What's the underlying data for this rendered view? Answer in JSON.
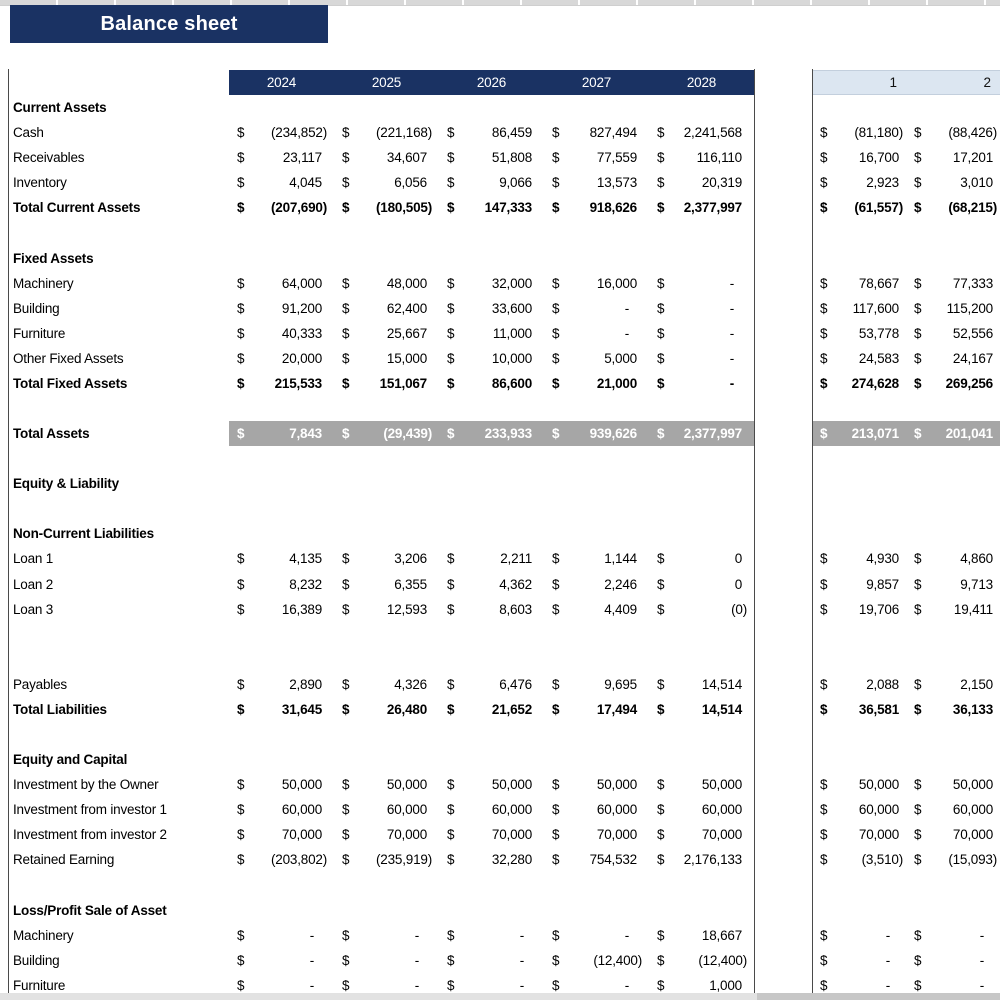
{
  "title": "Balance sheet",
  "table": {
    "currency": "$",
    "years": [
      "2024",
      "2025",
      "2026",
      "2027",
      "2028"
    ],
    "extra_headers": [
      "1",
      "2"
    ],
    "rows": [
      {
        "label": "Current Assets",
        "type": "section"
      },
      {
        "label": "Cash",
        "type": "data",
        "values": [
          "(234,852)",
          "(221,168)",
          "86,459",
          "827,494",
          "2,241,568"
        ],
        "extra": [
          "(81,180)",
          "(88,426)"
        ]
      },
      {
        "label": "Receivables",
        "type": "data",
        "values": [
          "23,117",
          "34,607",
          "51,808",
          "77,559",
          "116,110"
        ],
        "extra": [
          "16,700",
          "17,201"
        ]
      },
      {
        "label": "Inventory",
        "type": "data",
        "values": [
          "4,045",
          "6,056",
          "9,066",
          "13,573",
          "20,319"
        ],
        "extra": [
          "2,923",
          "3,010"
        ]
      },
      {
        "label": "Total Current Assets",
        "type": "total",
        "values": [
          "(207,690)",
          "(180,505)",
          "147,333",
          "918,626",
          "2,377,997"
        ],
        "extra": [
          "(61,557)",
          "(68,215)"
        ]
      },
      {
        "label": "",
        "type": "blank"
      },
      {
        "label": "Fixed Assets",
        "type": "section"
      },
      {
        "label": "Machinery",
        "type": "data",
        "values": [
          "64,000",
          "48,000",
          "32,000",
          "16,000",
          "-"
        ],
        "extra": [
          "78,667",
          "77,333"
        ]
      },
      {
        "label": "Building",
        "type": "data",
        "values": [
          "91,200",
          "62,400",
          "33,600",
          "-",
          "-"
        ],
        "extra": [
          "117,600",
          "115,200"
        ]
      },
      {
        "label": "Furniture",
        "type": "data",
        "values": [
          "40,333",
          "25,667",
          "11,000",
          "-",
          "-"
        ],
        "extra": [
          "53,778",
          "52,556"
        ]
      },
      {
        "label": "Other Fixed Assets",
        "type": "data",
        "values": [
          "20,000",
          "15,000",
          "10,000",
          "5,000",
          "-"
        ],
        "extra": [
          "24,583",
          "24,167"
        ]
      },
      {
        "label": "Total Fixed Assets",
        "type": "total",
        "values": [
          "215,533",
          "151,067",
          "86,600",
          "21,000",
          "-"
        ],
        "extra": [
          "274,628",
          "269,256"
        ]
      },
      {
        "label": "",
        "type": "blank"
      },
      {
        "label": "Total Assets",
        "type": "grand",
        "values": [
          "7,843",
          "(29,439)",
          "233,933",
          "939,626",
          "2,377,997"
        ],
        "extra": [
          "213,071",
          "201,041"
        ]
      },
      {
        "label": "",
        "type": "blank"
      },
      {
        "label": "Equity & Liability",
        "type": "section"
      },
      {
        "label": "",
        "type": "blank"
      },
      {
        "label": "Non-Current Liabilities",
        "type": "section"
      },
      {
        "label": "Loan 1",
        "type": "data",
        "values": [
          "4,135",
          "3,206",
          "2,211",
          "1,144",
          "0"
        ],
        "extra": [
          "4,930",
          "4,860"
        ]
      },
      {
        "label": "Loan 2",
        "type": "data",
        "values": [
          "8,232",
          "6,355",
          "4,362",
          "2,246",
          "0"
        ],
        "extra": [
          "9,857",
          "9,713"
        ]
      },
      {
        "label": "Loan 3",
        "type": "data",
        "values": [
          "16,389",
          "12,593",
          "8,603",
          "4,409",
          "(0)"
        ],
        "extra": [
          "19,706",
          "19,411"
        ]
      },
      {
        "label": "",
        "type": "blank"
      },
      {
        "label": "",
        "type": "blank"
      },
      {
        "label": "Payables",
        "type": "data",
        "values": [
          "2,890",
          "4,326",
          "6,476",
          "9,695",
          "14,514"
        ],
        "extra": [
          "2,088",
          "2,150"
        ]
      },
      {
        "label": "Total Liabilities",
        "type": "total",
        "values": [
          "31,645",
          "26,480",
          "21,652",
          "17,494",
          "14,514"
        ],
        "extra": [
          "36,581",
          "36,133"
        ]
      },
      {
        "label": "",
        "type": "blank"
      },
      {
        "label": "Equity and Capital",
        "type": "section"
      },
      {
        "label": "Investment by the Owner",
        "type": "data",
        "values": [
          "50,000",
          "50,000",
          "50,000",
          "50,000",
          "50,000"
        ],
        "extra": [
          "50,000",
          "50,000"
        ]
      },
      {
        "label": "Investment from investor 1",
        "type": "data",
        "values": [
          "60,000",
          "60,000",
          "60,000",
          "60,000",
          "60,000"
        ],
        "extra": [
          "60,000",
          "60,000"
        ]
      },
      {
        "label": "Investment from investor 2",
        "type": "data",
        "values": [
          "70,000",
          "70,000",
          "70,000",
          "70,000",
          "70,000"
        ],
        "extra": [
          "70,000",
          "70,000"
        ]
      },
      {
        "label": "Retained Earning",
        "type": "data",
        "values": [
          "(203,802)",
          "(235,919)",
          "32,280",
          "754,532",
          "2,176,133"
        ],
        "extra": [
          "(3,510)",
          "(15,093)"
        ]
      },
      {
        "label": "",
        "type": "blank"
      },
      {
        "label": "Loss/Profit Sale of Asset",
        "type": "section"
      },
      {
        "label": "Machinery",
        "type": "data",
        "values": [
          "-",
          "-",
          "-",
          "-",
          "18,667"
        ],
        "extra": [
          "-",
          "-"
        ]
      },
      {
        "label": "Building",
        "type": "data",
        "values": [
          "-",
          "-",
          "-",
          "(12,400)",
          "(12,400)"
        ],
        "extra": [
          "-",
          "-"
        ]
      },
      {
        "label": "Furniture",
        "type": "data",
        "values": [
          "-",
          "-",
          "-",
          "-",
          "1,000"
        ],
        "extra": [
          "-",
          "-"
        ]
      }
    ]
  }
}
